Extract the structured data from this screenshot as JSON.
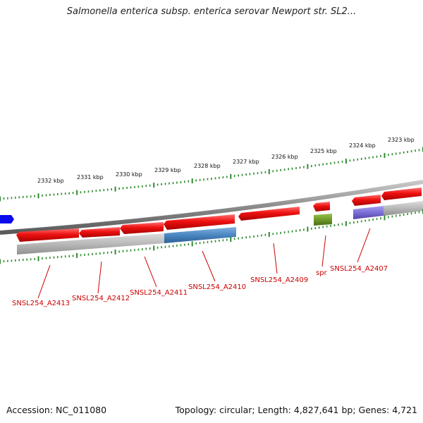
{
  "title": "Salmonella enterica subsp. enterica serovar Newport str. SL2...",
  "footer": {
    "accession": "Accession: NC_011080",
    "summary": "Topology: circular; Length: 4,827,641 bp; Genes: 4,721"
  },
  "colors": {
    "backbone": "#8a8a8a",
    "forward_gene": "#ee1111",
    "reverse_gene": "#ff2a2a",
    "cds_gray": "#b8b8b8",
    "cds_blue": "#4a86c0",
    "cds_violet": "#7b6fd6",
    "cds_olive": "#6e9a2a",
    "tick_green": "#2e8b2e",
    "label_red": "#cc0000",
    "strand_blue": "#0a0aee"
  },
  "scale": {
    "unit": "kbp",
    "labels": [
      "2332 kbp",
      "2331 kbp",
      "2330 kbp",
      "2329 kbp",
      "2328 kbp",
      "2327 kbp",
      "2326 kbp",
      "2325 kbp",
      "2324 kbp",
      "2323 kbp"
    ]
  },
  "genes": [
    {
      "label": "SNSL254_A2413"
    },
    {
      "label": "SNSL254_A2412"
    },
    {
      "label": "SNSL254_A2411"
    },
    {
      "label": "SNSL254_A2410"
    },
    {
      "label": "SNSL254_A2409"
    },
    {
      "label": "spr"
    },
    {
      "label": "SNSL254_A2407"
    }
  ]
}
